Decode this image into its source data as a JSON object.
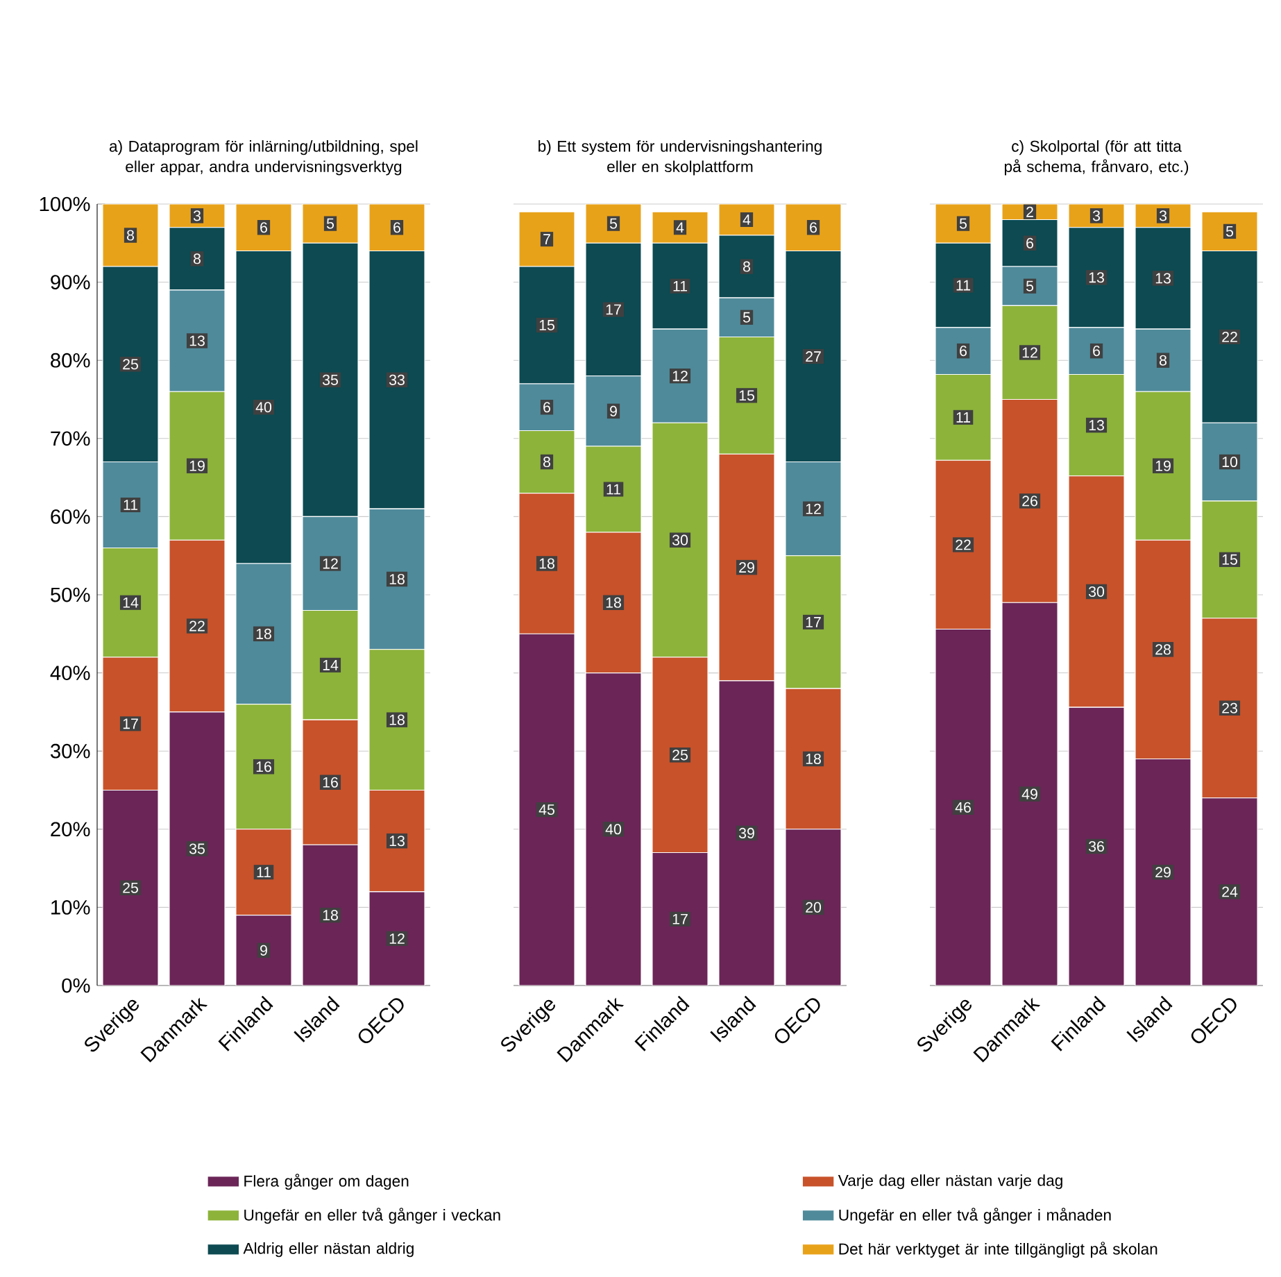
{
  "chart_data": [
    {
      "type": "bar",
      "stacked": true,
      "title": "a) Dataprogram för inlärning/utbildning, spel eller appar, andra undervisningsverktyg",
      "categories": [
        "Sverige",
        "Danmark",
        "Finland",
        "Island",
        "OECD"
      ],
      "ylim": [
        0,
        100
      ],
      "yticks": [
        {
          "value": 0,
          "label": "0%"
        },
        {
          "value": 10,
          "label": "10%"
        },
        {
          "value": 20,
          "label": "20%"
        },
        {
          "value": 30,
          "label": "30%"
        },
        {
          "value": 40,
          "label": "40%"
        },
        {
          "value": 50,
          "label": "50%"
        },
        {
          "value": 60,
          "label": "60%"
        },
        {
          "value": 70,
          "label": "70%"
        },
        {
          "value": 80,
          "label": "80%"
        },
        {
          "value": 90,
          "label": "90%"
        },
        {
          "value": 100,
          "label": "100%"
        }
      ],
      "grid": "y",
      "data_labels": true,
      "series": [
        {
          "color": "#6b2557",
          "values": [
            25,
            35,
            9,
            18,
            12
          ]
        },
        {
          "color": "#c8522a",
          "values": [
            17,
            22,
            11,
            16,
            13
          ]
        },
        {
          "color": "#8db33a",
          "values": [
            14,
            19,
            16,
            14,
            18
          ]
        },
        {
          "color": "#4f8a9a",
          "values": [
            11,
            13,
            18,
            12,
            18
          ]
        },
        {
          "color": "#0d4a52",
          "values": [
            25,
            8,
            40,
            35,
            33
          ]
        },
        {
          "color": "#e8a21a",
          "values": [
            8,
            3,
            6,
            5,
            6
          ]
        }
      ]
    },
    {
      "type": "bar",
      "stacked": true,
      "title": "b) Ett system för undervisningshantering eller en skolplattform",
      "categories": [
        "Sverige",
        "Danmark",
        "Finland",
        "Island",
        "OECD"
      ],
      "ylim": [
        0,
        100
      ],
      "yticks": [
        {
          "value": 0,
          "label": null
        },
        {
          "value": 10,
          "label": null
        },
        {
          "value": 20,
          "label": null
        },
        {
          "value": 30,
          "label": null
        },
        {
          "value": 40,
          "label": null
        },
        {
          "value": 50,
          "label": null
        },
        {
          "value": 60,
          "label": null
        },
        {
          "value": 70,
          "label": null
        },
        {
          "value": 80,
          "label": null
        },
        {
          "value": 90,
          "label": null
        },
        {
          "value": 100,
          "label": null
        }
      ],
      "tick_labels": "x",
      "grid": "y",
      "data_labels": true,
      "legend": "bottom",
      "series": [
        {
          "name": "Flera gånger om dagen",
          "color": "#6b2557",
          "values": [
            45,
            40,
            17,
            39,
            20
          ]
        },
        {
          "name": "Varje dag eller nästan varje dag",
          "color": "#c8522a",
          "values": [
            18,
            18,
            25,
            29,
            18
          ]
        },
        {
          "name": "Ungefär en eller två gånger i veckan",
          "color": "#8db33a",
          "values": [
            8,
            11,
            30,
            15,
            17
          ]
        },
        {
          "name": "Ungefär en eller två gånger i månaden",
          "color": "#4f8a9a",
          "values": [
            6,
            9,
            12,
            5,
            12
          ]
        },
        {
          "name": "Aldrig eller nästan aldrig",
          "color": "#0d4a52",
          "values": [
            15,
            17,
            11,
            8,
            27
          ]
        },
        {
          "name": "Det här verktyget är inte tillgängligt på skolan",
          "color": "#e8a21a",
          "values": [
            7,
            5,
            4,
            4,
            6
          ]
        }
      ]
    },
    {
      "type": "bar",
      "stacked": true,
      "title": "c) Skolportal (för att titta på schema, frånvaro, etc.)",
      "categories": [
        "Sverige",
        "Danmark",
        "Finland",
        "Island",
        "OECD"
      ],
      "ylim": [
        0,
        100
      ],
      "yticks": [
        {
          "value": 0,
          "label": null
        },
        {
          "value": 10,
          "label": null
        },
        {
          "value": 20,
          "label": null
        },
        {
          "value": 30,
          "label": null
        },
        {
          "value": 40,
          "label": null
        },
        {
          "value": 50,
          "label": null
        },
        {
          "value": 60,
          "label": null
        },
        {
          "value": 70,
          "label": null
        },
        {
          "value": 80,
          "label": null
        },
        {
          "value": 90,
          "label": null
        },
        {
          "value": 100,
          "label": null
        }
      ],
      "tick_labels": "x",
      "grid": "y",
      "series": [
        {
          "color": "#6b2557",
          "values": [
            45.6,
            49,
            35.6,
            29,
            24
          ],
          "value_labels": [
            "46",
            "49",
            "36",
            "29",
            "24"
          ]
        },
        {
          "color": "#c8522a",
          "values": [
            21.6,
            26,
            29.6,
            28,
            23
          ],
          "value_labels": [
            "22",
            "26",
            "30",
            "28",
            "23"
          ]
        },
        {
          "color": "#8db33a",
          "values": [
            11,
            12,
            13,
            19,
            15
          ],
          "value_labels": [
            "11",
            "12",
            "13",
            "19",
            "15"
          ]
        },
        {
          "color": "#4f8a9a",
          "values": [
            6,
            5,
            6,
            8,
            10
          ],
          "value_labels": [
            "6",
            "5",
            "6",
            "8",
            "10"
          ]
        },
        {
          "color": "#0d4a52",
          "values": [
            10.8,
            6,
            12.8,
            13,
            22
          ],
          "value_labels": [
            "11",
            "6",
            "13",
            "13",
            "22"
          ]
        },
        {
          "color": "#e8a21a",
          "values": [
            5,
            2,
            3,
            3,
            5
          ],
          "value_labels": [
            "5",
            "2",
            "3",
            "3",
            "5"
          ]
        }
      ]
    }
  ]
}
